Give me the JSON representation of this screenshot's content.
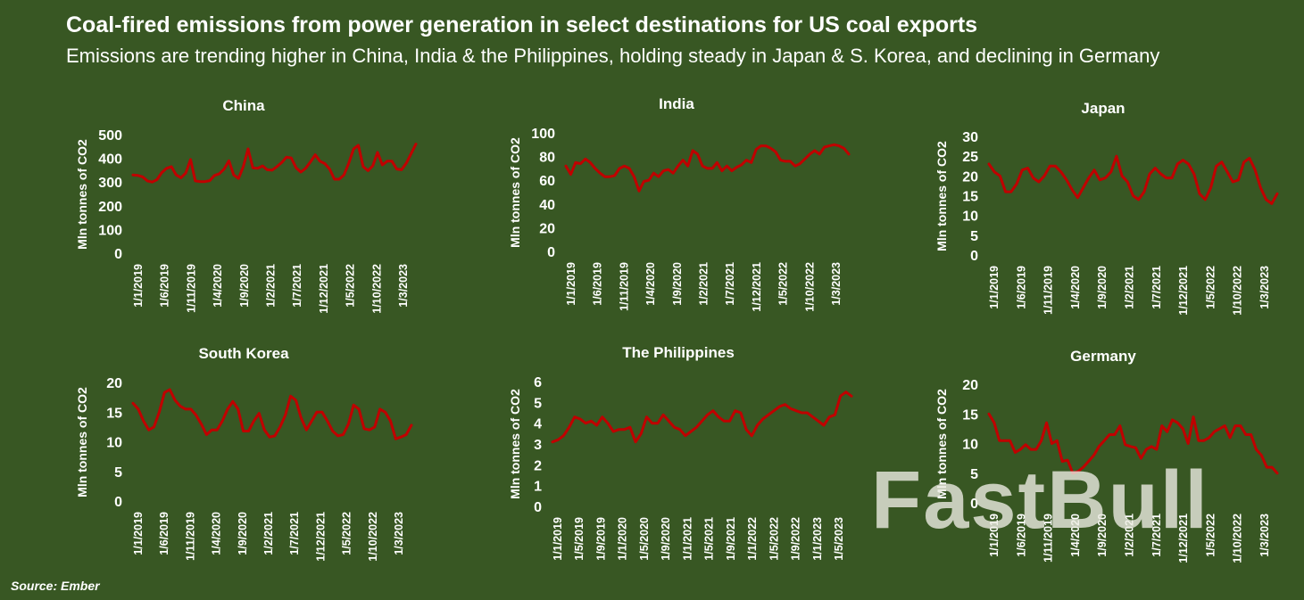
{
  "title": "Coal-fired emissions from power generation in select destinations for US coal exports",
  "subtitle": "Emissions are trending higher in China, India & the Philippines, holding steady in Japan & S. Korea, and declining in Germany",
  "source": "Source: Ember",
  "watermark": "FastBull",
  "colors": {
    "background": "#385723",
    "line": "#C00000",
    "text": "#FFFFFF"
  },
  "chart_data": [
    {
      "type": "line",
      "title": "China",
      "ylabel": "Mln tonnes of CO2",
      "ylim": [
        0,
        500
      ],
      "yticks": [
        "0",
        "100",
        "200",
        "300",
        "400",
        "500"
      ],
      "xticks": [
        "1/1/2019",
        "1/6/2019",
        "1/11/2019",
        "1/4/2020",
        "1/9/2020",
        "1/2/2021",
        "1/7/2021",
        "1/12/2021",
        "1/5/2022",
        "1/10/2022",
        "1/3/2023"
      ],
      "series": [
        {
          "name": "China",
          "values": [
            330,
            328,
            322,
            305,
            300,
            310,
            340,
            358,
            365,
            330,
            318,
            338,
            395,
            305,
            302,
            302,
            306,
            328,
            335,
            355,
            390,
            330,
            315,
            365,
            440,
            360,
            358,
            368,
            352,
            350,
            365,
            382,
            405,
            402,
            360,
            342,
            358,
            385,
            415,
            388,
            378,
            355,
            312,
            312,
            330,
            380,
            440,
            455,
            365,
            348,
            368,
            425,
            372,
            388,
            388,
            355,
            352,
            380,
            420,
            460
          ]
        }
      ]
    },
    {
      "type": "line",
      "title": "India",
      "ylabel": "Mln tonnes of CO2",
      "ylim": [
        0,
        100
      ],
      "yticks": [
        "0",
        "20",
        "40",
        "60",
        "80",
        "100"
      ],
      "xticks": [
        "1/1/2019",
        "1/6/2019",
        "1/11/2019",
        "1/4/2020",
        "1/9/2020",
        "1/2/2021",
        "1/7/2021",
        "1/12/2021",
        "1/5/2022",
        "1/10/2022",
        "1/3/2023"
      ],
      "series": [
        {
          "name": "India",
          "values": [
            72,
            65,
            75,
            74,
            78,
            75,
            70,
            66,
            63,
            63,
            64,
            70,
            72,
            70,
            63,
            51,
            59,
            60,
            66,
            63,
            68,
            69,
            66,
            72,
            77,
            72,
            85,
            82,
            72,
            70,
            70,
            75,
            68,
            72,
            68,
            71,
            73,
            77,
            75,
            86,
            89,
            89,
            87,
            84,
            77,
            76,
            76,
            72,
            74,
            78,
            82,
            85,
            82,
            88,
            89,
            90,
            89,
            87,
            82
          ]
        }
      ]
    },
    {
      "type": "line",
      "title": "Japan",
      "ylabel": "Mln tonnes of CO2",
      "ylim": [
        0,
        30
      ],
      "yticks": [
        "0",
        "5",
        "10",
        "15",
        "20",
        "25",
        "30"
      ],
      "xticks": [
        "1/1/2019",
        "1/6/2019",
        "1/11/2019",
        "1/4/2020",
        "1/9/2020",
        "1/2/2021",
        "1/7/2021",
        "1/12/2021",
        "1/5/2022",
        "1/10/2022",
        "1/3/2023"
      ],
      "series": [
        {
          "name": "Japan",
          "values": [
            23,
            21,
            20,
            16,
            16,
            18,
            21.5,
            22,
            19.5,
            18.5,
            20,
            22.5,
            22.5,
            21,
            19,
            16.5,
            14.5,
            17,
            19.5,
            21.5,
            19,
            19.5,
            21,
            25,
            20,
            18.5,
            15,
            14,
            16,
            20.5,
            22,
            20.5,
            19.5,
            19.5,
            23,
            24,
            23,
            20.5,
            15.5,
            14,
            17,
            22.5,
            23.5,
            21,
            18.5,
            19,
            23.5,
            24.5,
            21.5,
            17,
            14,
            13,
            15.5
          ]
        }
      ]
    },
    {
      "type": "line",
      "title": "South Korea",
      "ylabel": "Mln tonnes of CO2",
      "ylim": [
        0,
        20
      ],
      "yticks": [
        "0",
        "5",
        "10",
        "15",
        "20"
      ],
      "xticks": [
        "1/1/2019",
        "1/6/2019",
        "1/11/2019",
        "1/4/2020",
        "1/9/2020",
        "1/2/2021",
        "1/7/2021",
        "1/12/2021",
        "1/5/2022",
        "1/10/2022",
        "1/3/2023"
      ],
      "series": [
        {
          "name": "South Korea",
          "values": [
            16.5,
            15.5,
            13.5,
            12,
            12.5,
            15,
            18.3,
            18.8,
            17,
            16,
            15.5,
            15.5,
            14.5,
            13,
            11.2,
            12,
            12,
            13.5,
            15.5,
            16.8,
            15.5,
            11.8,
            11.8,
            13.5,
            14.8,
            12,
            10.8,
            11,
            12.5,
            14.5,
            17.7,
            17,
            14,
            12,
            13.5,
            15,
            15,
            13.5,
            11.8,
            11,
            11.2,
            13,
            16.2,
            15.5,
            12.2,
            12,
            12.5,
            15.5,
            15,
            13.5,
            10.5,
            10.8,
            11.2,
            12.8
          ]
        }
      ]
    },
    {
      "type": "line",
      "title": "The Philippines",
      "ylabel": "Mln tonnes of CO2",
      "ylim": [
        0,
        6
      ],
      "yticks": [
        "0",
        "1",
        "2",
        "3",
        "4",
        "5",
        "6"
      ],
      "xticks": [
        "1/1/2019",
        "1/5/2019",
        "1/9/2019",
        "1/1/2020",
        "1/5/2020",
        "1/9/2020",
        "1/1/2021",
        "1/5/2021",
        "1/9/2021",
        "1/1/2022",
        "1/5/2022",
        "1/9/2022",
        "1/1/2023",
        "1/5/2023"
      ],
      "series": [
        {
          "name": "The Philippines",
          "values": [
            3.1,
            3.2,
            3.4,
            3.8,
            4.3,
            4.2,
            4.0,
            4.1,
            3.9,
            4.3,
            4.0,
            3.6,
            3.7,
            3.7,
            3.8,
            3.1,
            3.5,
            4.3,
            4.0,
            4.0,
            4.4,
            4.1,
            3.8,
            3.7,
            3.4,
            3.6,
            3.8,
            4.1,
            4.4,
            4.6,
            4.3,
            4.1,
            4.1,
            4.6,
            4.5,
            3.7,
            3.4,
            3.9,
            4.2,
            4.4,
            4.6,
            4.8,
            4.9,
            4.7,
            4.6,
            4.5,
            4.5,
            4.3,
            4.1,
            3.9,
            4.3,
            4.4,
            5.3,
            5.5,
            5.3
          ]
        }
      ]
    },
    {
      "type": "line",
      "title": "Germany",
      "ylabel": "Mln tonnes of CO2",
      "ylim": [
        0,
        20
      ],
      "yticks": [
        "0",
        "5",
        "10",
        "15",
        "20"
      ],
      "xticks": [
        "1/1/2019",
        "1/6/2019",
        "1/11/2019",
        "1/4/2020",
        "1/9/2020",
        "1/2/2021",
        "1/7/2021",
        "1/12/2021",
        "1/5/2022",
        "1/10/2022",
        "1/3/2023"
      ],
      "series": [
        {
          "name": "Germany",
          "values": [
            15,
            13.5,
            10.5,
            10.5,
            10.5,
            8.5,
            9,
            9.8,
            9,
            9,
            10.5,
            13.5,
            10,
            10.5,
            7,
            7.2,
            5,
            5.3,
            6,
            7,
            8,
            9.5,
            10.5,
            11.5,
            11.5,
            13,
            9.8,
            9.5,
            9.3,
            7.5,
            9,
            9.5,
            9,
            13,
            12,
            14,
            13.5,
            12.5,
            10,
            14.5,
            10.5,
            10.5,
            11,
            12,
            12.5,
            13,
            11,
            13,
            13,
            11.5,
            11.5,
            9,
            8,
            6,
            6,
            5
          ]
        }
      ]
    }
  ]
}
